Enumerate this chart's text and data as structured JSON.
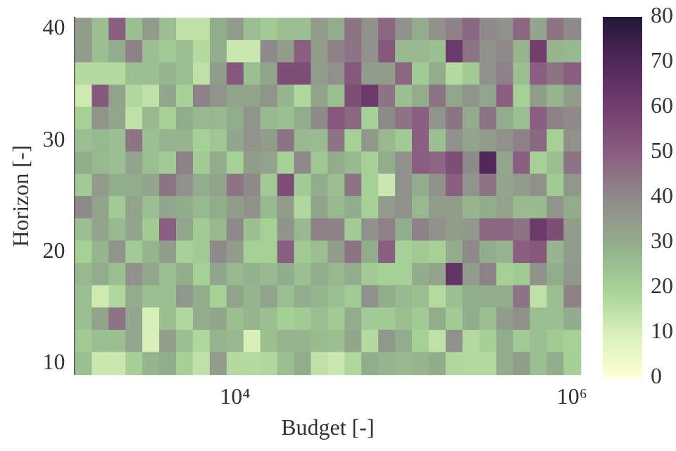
{
  "chart_data": {
    "type": "heatmap",
    "xlabel": "Budget [-]",
    "ylabel": "Horizon [-]",
    "categories": [
      null,
      null,
      null,
      null,
      null,
      null,
      null,
      null,
      null,
      "10⁴",
      null,
      null,
      null,
      null,
      null,
      null,
      null,
      null,
      null,
      null,
      null,
      null,
      null,
      null,
      null,
      null,
      null,
      null,
      null,
      "10⁶"
    ],
    "y_categories": [
      "40",
      null,
      null,
      null,
      null,
      "30",
      null,
      null,
      null,
      null,
      "20",
      null,
      null,
      null,
      null,
      "10"
    ],
    "cells": [
      [
        35,
        25,
        50,
        25,
        35,
        25,
        15,
        15,
        30,
        35,
        25,
        22,
        25,
        25,
        35,
        30,
        45,
        38,
        48,
        38,
        30,
        38,
        42,
        48,
        40,
        38,
        48,
        32,
        45,
        40
      ],
      [
        35,
        25,
        30,
        42,
        25,
        22,
        25,
        17,
        30,
        13,
        13,
        40,
        35,
        50,
        35,
        42,
        45,
        38,
        52,
        27,
        27,
        25,
        62,
        45,
        38,
        40,
        28,
        60,
        28,
        27
      ],
      [
        17,
        17,
        17,
        25,
        25,
        28,
        25,
        15,
        35,
        52,
        25,
        33,
        55,
        55,
        35,
        38,
        52,
        35,
        35,
        48,
        22,
        30,
        17,
        22,
        38,
        42,
        25,
        50,
        45,
        50
      ],
      [
        12,
        52,
        33,
        18,
        15,
        32,
        20,
        42,
        37,
        33,
        33,
        37,
        28,
        18,
        33,
        25,
        55,
        62,
        45,
        25,
        30,
        45,
        32,
        37,
        32,
        50,
        20,
        35,
        28,
        35
      ],
      [
        20,
        37,
        32,
        15,
        27,
        20,
        30,
        27,
        27,
        30,
        37,
        27,
        25,
        30,
        40,
        52,
        48,
        20,
        40,
        45,
        50,
        37,
        45,
        30,
        45,
        30,
        25,
        50,
        42,
        40
      ],
      [
        25,
        27,
        25,
        45,
        25,
        28,
        28,
        20,
        23,
        32,
        37,
        35,
        45,
        27,
        26,
        45,
        20,
        36,
        27,
        22,
        50,
        25,
        38,
        33,
        35,
        38,
        42,
        48,
        20,
        38
      ],
      [
        30,
        27,
        25,
        33,
        25,
        22,
        42,
        22,
        30,
        20,
        35,
        33,
        20,
        40,
        23,
        30,
        27,
        20,
        30,
        38,
        50,
        48,
        55,
        40,
        70,
        32,
        50,
        20,
        25,
        45
      ],
      [
        22,
        35,
        30,
        30,
        32,
        45,
        38,
        30,
        33,
        45,
        40,
        22,
        55,
        22,
        30,
        25,
        45,
        20,
        13,
        38,
        30,
        38,
        50,
        37,
        45,
        32,
        35,
        38,
        22,
        36
      ],
      [
        40,
        33,
        22,
        33,
        25,
        32,
        30,
        27,
        30,
        35,
        38,
        27,
        35,
        18,
        33,
        27,
        30,
        20,
        35,
        38,
        27,
        35,
        35,
        28,
        30,
        33,
        26,
        26,
        37,
        30
      ],
      [
        25,
        32,
        27,
        32,
        22,
        50,
        32,
        22,
        27,
        40,
        25,
        20,
        37,
        27,
        42,
        42,
        22,
        38,
        42,
        30,
        42,
        38,
        35,
        36,
        48,
        48,
        45,
        62,
        55,
        35
      ],
      [
        20,
        28,
        37,
        22,
        28,
        35,
        20,
        22,
        40,
        35,
        20,
        20,
        50,
        22,
        25,
        35,
        45,
        30,
        50,
        20,
        22,
        20,
        30,
        40,
        30,
        28,
        50,
        52,
        28,
        35
      ],
      [
        27,
        30,
        25,
        38,
        32,
        25,
        30,
        20,
        32,
        27,
        29,
        27,
        30,
        25,
        30,
        27,
        30,
        22,
        20,
        20,
        30,
        33,
        65,
        35,
        42,
        20,
        22,
        38,
        30,
        36
      ],
      [
        25,
        12,
        18,
        30,
        25,
        25,
        36,
        30,
        20,
        33,
        28,
        33,
        25,
        30,
        28,
        25,
        22,
        38,
        30,
        27,
        25,
        17,
        25,
        30,
        30,
        30,
        45,
        15,
        25,
        42
      ],
      [
        25,
        33,
        45,
        32,
        10,
        25,
        18,
        30,
        32,
        25,
        28,
        25,
        20,
        22,
        25,
        22,
        30,
        22,
        22,
        25,
        22,
        30,
        22,
        30,
        25,
        35,
        38,
        25,
        25,
        30
      ],
      [
        22,
        25,
        25,
        32,
        10,
        34,
        25,
        18,
        28,
        27,
        10,
        25,
        28,
        28,
        26,
        25,
        32,
        17,
        36,
        30,
        20,
        15,
        38,
        17,
        20,
        30,
        22,
        25,
        22,
        20
      ],
      [
        25,
        13,
        13,
        20,
        28,
        30,
        20,
        15,
        35,
        17,
        17,
        18,
        25,
        30,
        15,
        13,
        18,
        30,
        28,
        27,
        28,
        30,
        18,
        17,
        17,
        30,
        35,
        25,
        30,
        20
      ]
    ],
    "clim": [
      0,
      80
    ],
    "cticks": [
      0,
      10,
      20,
      30,
      40,
      50,
      60,
      70,
      80
    ],
    "grid": false
  }
}
